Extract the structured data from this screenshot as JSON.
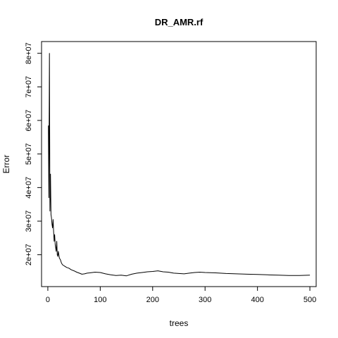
{
  "chart_data": {
    "type": "line",
    "title": "DR_AMR.rf",
    "xlabel": "trees",
    "ylabel": "Error",
    "xlim": [
      -12,
      512
    ],
    "ylim": [
      10500000,
      83500000
    ],
    "xticks": [
      0,
      100,
      200,
      300,
      400,
      500
    ],
    "xtick_labels": [
      "0",
      "100",
      "200",
      "300",
      "400",
      "500"
    ],
    "yticks": [
      20000000,
      30000000,
      40000000,
      50000000,
      60000000,
      70000000,
      80000000
    ],
    "ytick_labels": [
      "2e+07",
      "3e+07",
      "4e+07",
      "5e+07",
      "6e+07",
      "7e+07",
      "8e+07"
    ],
    "grid": false,
    "series": [
      {
        "color": "#000000",
        "x": [
          1,
          2,
          3,
          4,
          5,
          6,
          7,
          8,
          9,
          10,
          11,
          12,
          13,
          14,
          15,
          16,
          17,
          18,
          19,
          20,
          22,
          24,
          26,
          28,
          30,
          33,
          36,
          40,
          45,
          50,
          55,
          60,
          65,
          70,
          75,
          80,
          90,
          100,
          110,
          120,
          130,
          140,
          150,
          160,
          170,
          180,
          190,
          200,
          210,
          220,
          230,
          240,
          250,
          260,
          270,
          280,
          290,
          300,
          320,
          340,
          360,
          380,
          400,
          420,
          440,
          460,
          480,
          500
        ],
        "y": [
          58500000,
          37000000,
          80000000,
          33000000,
          44000000,
          32000000,
          31000000,
          29000000,
          28000000,
          30500000,
          27000000,
          24000000,
          26000000,
          23000000,
          22000000,
          21000000,
          24000000,
          20000000,
          19500000,
          21000000,
          19000000,
          18500000,
          17500000,
          17000000,
          16800000,
          16500000,
          16200000,
          16000000,
          15500000,
          15200000,
          14800000,
          14500000,
          14200000,
          14300000,
          14500000,
          14600000,
          14800000,
          14700000,
          14300000,
          14000000,
          13800000,
          13900000,
          13700000,
          14200000,
          14500000,
          14700000,
          14900000,
          15000000,
          15200000,
          14900000,
          14800000,
          14500000,
          14400000,
          14300000,
          14500000,
          14700000,
          14800000,
          14700000,
          14600000,
          14400000,
          14300000,
          14200000,
          14100000,
          14000000,
          13900000,
          13800000,
          13800000,
          13900000
        ]
      }
    ]
  }
}
